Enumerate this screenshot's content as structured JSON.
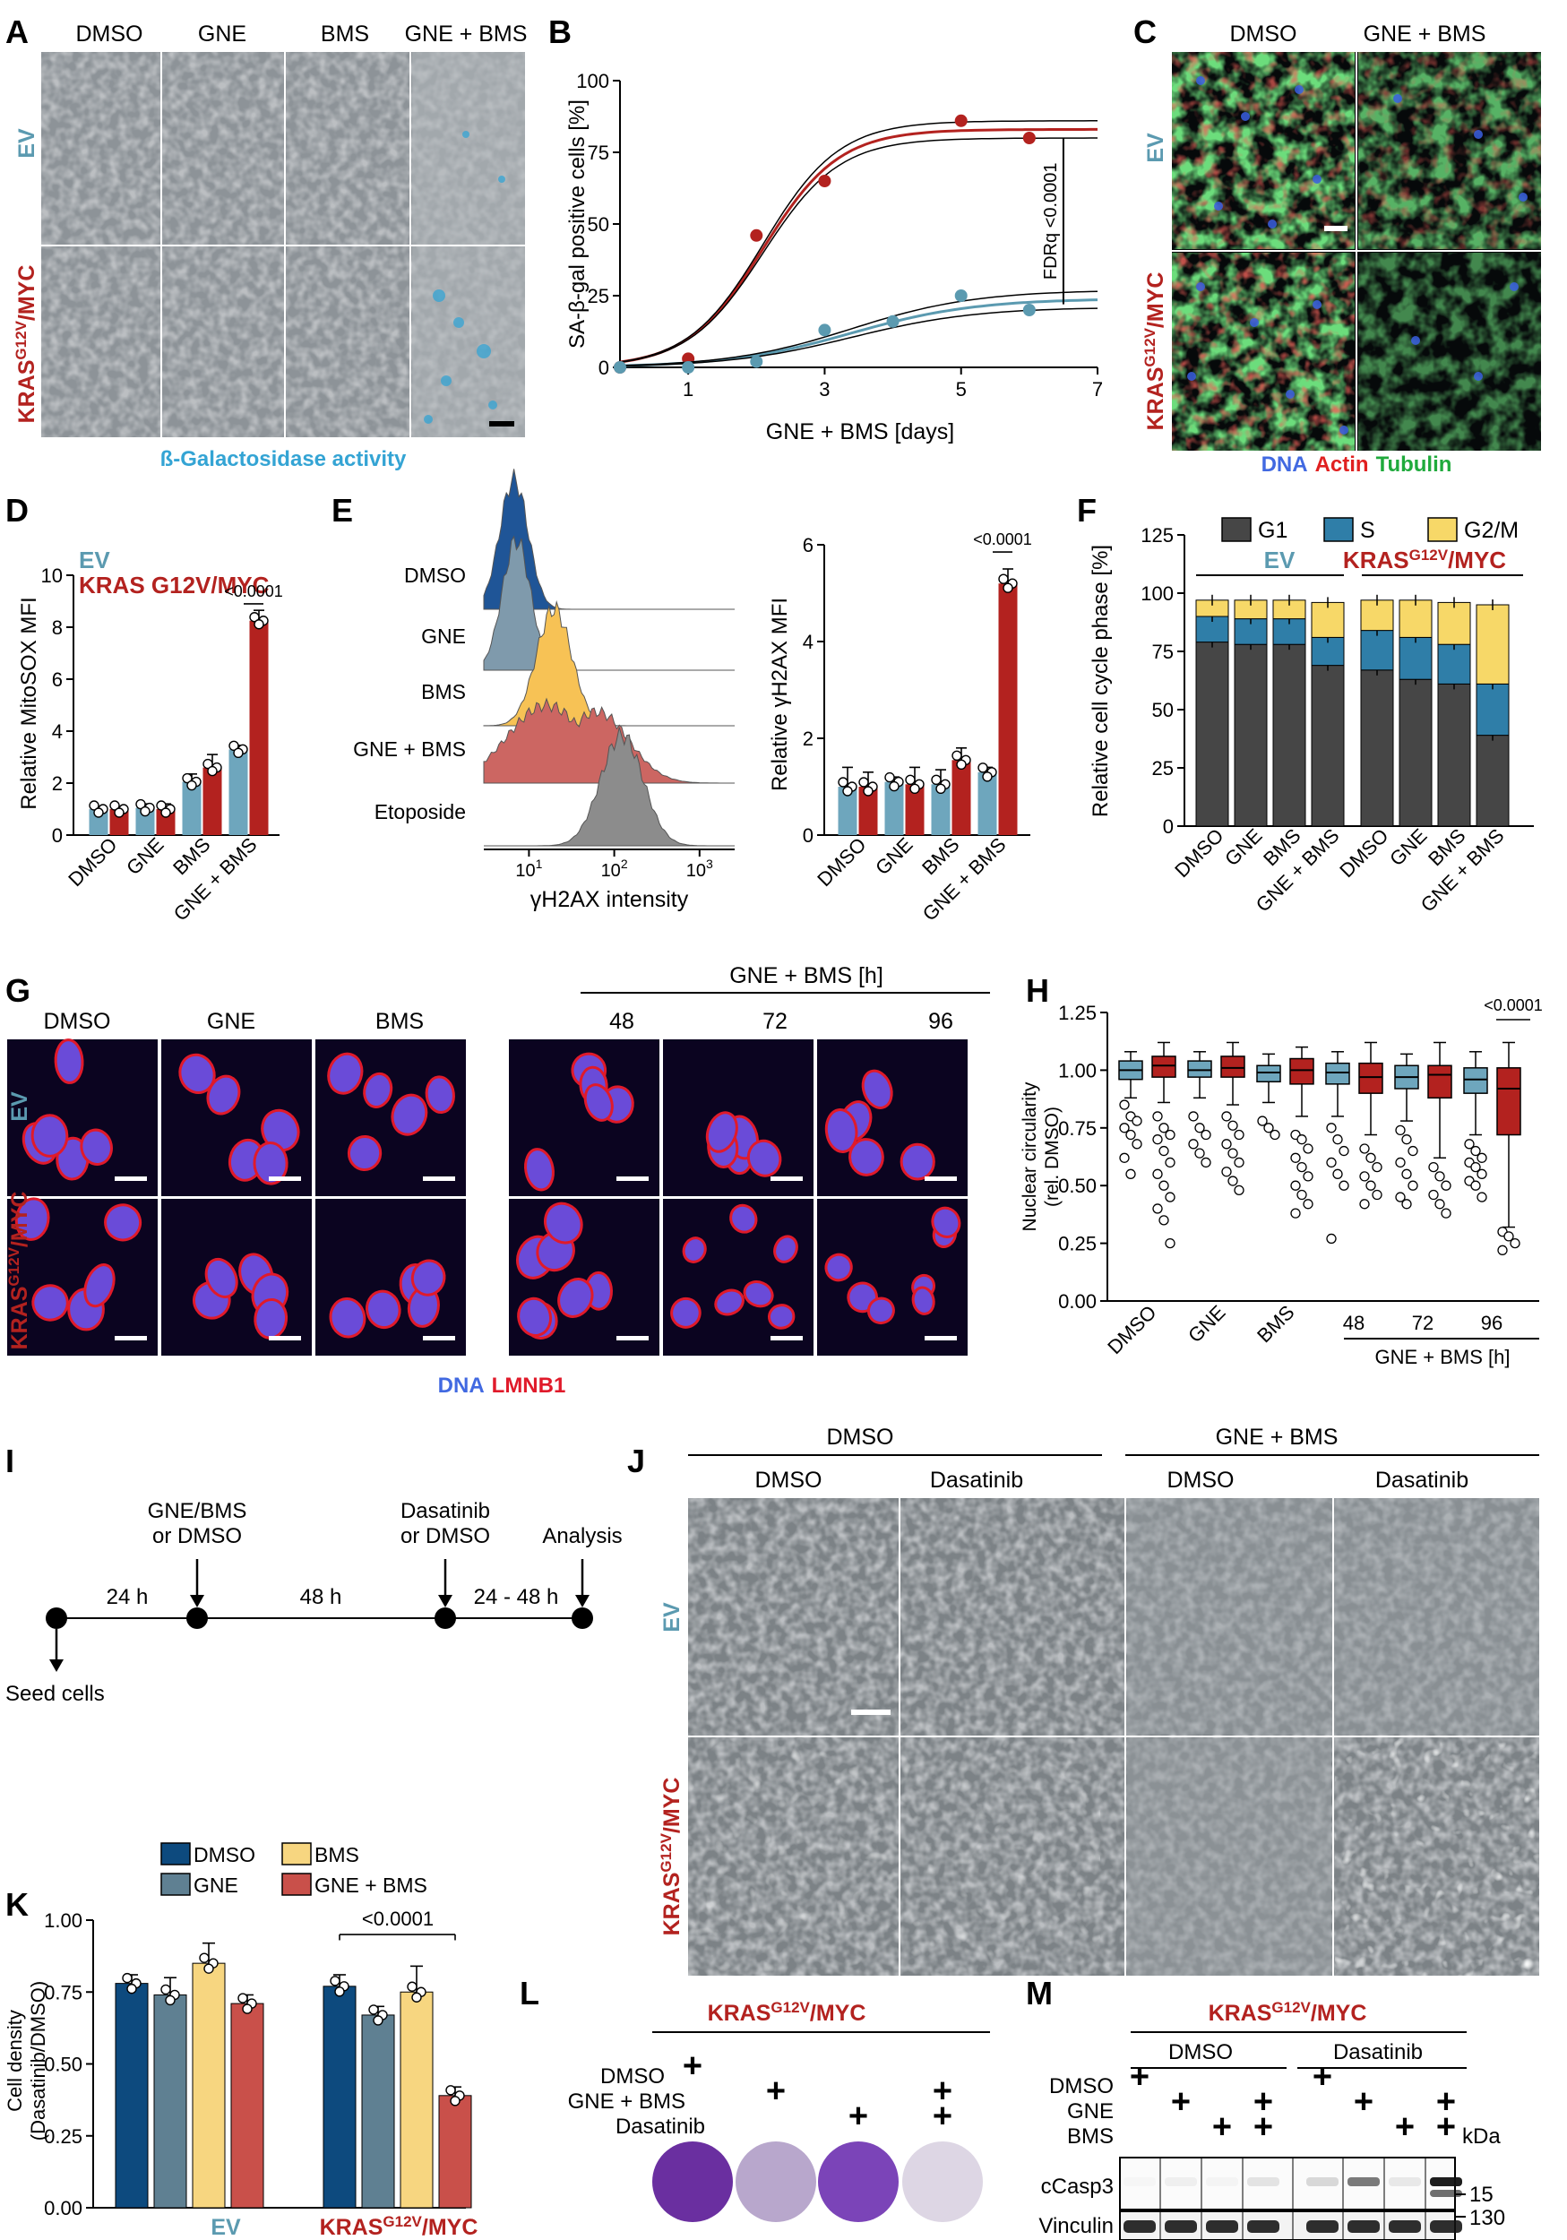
{
  "colors": {
    "ev": "#5b9ab0",
    "kras": "#b3221f",
    "ev_bar": "#6ea6bd",
    "kras_bar": "#b3221f",
    "g1": "#464646",
    "s": "#2f7ea8",
    "g2m": "#f7d868",
    "dmso_k": "#0d4a7e",
    "gne_k": "#5f8092",
    "bms_k": "#f7d680",
    "combo_k": "#c9504a",
    "beta_gal": "#34a4d4",
    "dna": "#4169e1",
    "actin": "#e02020",
    "tubulin": "#1faa3c",
    "lmnb1": "#e01a2a"
  },
  "panels": {
    "A": {
      "letter": "A",
      "columns": [
        "DMSO",
        "GNE",
        "BMS",
        "GNE + BMS"
      ],
      "row_ev": "EV",
      "row_kras_base": "KRAS",
      "row_kras_sup": "G12V",
      "row_kras_tail": "/MYC",
      "caption": "ß-Galactosidase activity"
    },
    "B": {
      "letter": "B"
    },
    "C": {
      "letter": "C",
      "columns": [
        "DMSO",
        "GNE + BMS"
      ],
      "row_ev": "EV",
      "row_kras_base": "KRAS",
      "row_kras_sup": "G12V",
      "row_kras_tail": "/MYC",
      "caption_dna": "DNA",
      "caption_actin": "Actin",
      "caption_tubulin": "Tubulin"
    },
    "D": {
      "letter": "D"
    },
    "E": {
      "letter": "E"
    },
    "F": {
      "letter": "F"
    },
    "G": {
      "letter": "G",
      "columns": [
        "DMSO",
        "GNE",
        "BMS",
        "48",
        "72",
        "96"
      ],
      "header": "GNE + BMS [h]",
      "row_ev": "EV",
      "row_kras_base": "KRAS",
      "row_kras_sup": "G12V",
      "row_kras_tail": "/MYC",
      "caption_dna": "DNA",
      "caption_lmnb1": "LMNB1"
    },
    "H": {
      "letter": "H"
    },
    "I": {
      "letter": "I",
      "step1": "GNE/BMS",
      "step1b": "or DMSO",
      "step2": "Dasatinib",
      "step2b": "or DMSO",
      "step3": "Analysis",
      "seed": "Seed cells",
      "t1": "24 h",
      "t2": "48 h",
      "t3": "24 - 48 h"
    },
    "J": {
      "letter": "J",
      "group1": "DMSO",
      "group2": "GNE + BMS",
      "columns": [
        "DMSO",
        "Dasatinib",
        "DMSO",
        "Dasatinib"
      ],
      "row_ev": "EV",
      "row_kras_base": "KRAS",
      "row_kras_sup": "G12V",
      "row_kras_tail": "/MYC"
    },
    "K": {
      "letter": "K"
    },
    "L": {
      "letter": "L",
      "title_base": "KRAS",
      "title_sup": "G12V",
      "title_tail": "/MYC",
      "rows": [
        "DMSO",
        "GNE + BMS",
        "Dasatinib"
      ],
      "plus": "+"
    },
    "M": {
      "letter": "M",
      "title_base": "KRAS",
      "title_sup": "G12V",
      "title_tail": "/MYC",
      "group1": "DMSO",
      "group2": "Dasatinib",
      "rows": [
        "DMSO",
        "GNE",
        "BMS"
      ],
      "plus": "+",
      "kda": "kDa",
      "blot1": "cCasp3",
      "blot2": "Vinculin",
      "mw1": "15",
      "mw2": "130"
    }
  },
  "chart_data": [
    {
      "id": "B",
      "type": "line",
      "ylabel": "SA-β-gal positive cells [%]",
      "xlabel": "GNE + BMS [days]",
      "ylim": [
        0,
        100
      ],
      "xlim": [
        0,
        7
      ],
      "yticks": [
        0,
        25,
        50,
        75,
        100
      ],
      "xticks": [
        1,
        3,
        5,
        7
      ],
      "annotation": "FDRq <0.0001",
      "series": [
        {
          "name": "",
          "group": "kras",
          "points": [
            [
              0,
              0
            ],
            [
              1,
              3
            ],
            [
              2,
              46
            ],
            [
              3,
              65
            ],
            [
              5,
              86
            ],
            [
              6,
              80
            ]
          ]
        },
        {
          "name": "",
          "group": "ev",
          "points": [
            [
              0,
              0
            ],
            [
              1,
              0
            ],
            [
              2,
              2
            ],
            [
              3,
              13
            ],
            [
              4,
              16
            ],
            [
              5,
              25
            ],
            [
              6,
              20
            ]
          ]
        }
      ]
    },
    {
      "id": "D",
      "type": "bar",
      "ylabel": "Relative MitoSOX MFI",
      "ylim": [
        0,
        10
      ],
      "yticks": [
        0,
        2,
        4,
        6,
        8,
        10
      ],
      "categories": [
        "DMSO",
        "GNE",
        "BMS",
        "GNE + BMS"
      ],
      "legend": [
        "EV",
        "KRAS G12V/MYC"
      ],
      "annotation": "<0.0001",
      "series": [
        {
          "name": "EV",
          "values": [
            1.0,
            1.05,
            2.05,
            3.3
          ],
          "errors": [
            0.1,
            0.15,
            0.3,
            0.15
          ]
        },
        {
          "name": "KRAS G12V/MYC",
          "values": [
            1.0,
            1.0,
            2.6,
            8.25
          ],
          "errors": [
            0.1,
            0.2,
            0.5,
            0.4
          ]
        }
      ]
    },
    {
      "id": "E_hist",
      "type": "area",
      "xlabel": "γH2AX intensity",
      "xticks": [
        "10^1",
        "10^2",
        "10^3"
      ],
      "labels": [
        "DMSO",
        "GNE",
        "BMS",
        "GNE + BMS",
        "Etoposide"
      ],
      "fills": [
        "#1f5597",
        "#7f9aac",
        "#f7c255",
        "#cc6662",
        "#8c8c8c"
      ]
    },
    {
      "id": "E_bar",
      "type": "bar",
      "ylabel": "Relative γH2AX MFI",
      "ylim": [
        0,
        6
      ],
      "yticks": [
        0,
        2,
        4,
        6
      ],
      "categories": [
        "DMSO",
        "GNE",
        "BMS",
        "GNE + BMS"
      ],
      "annotation": "<0.0001",
      "series": [
        {
          "name": "EV",
          "values": [
            1.0,
            1.1,
            1.05,
            1.3
          ],
          "errors": [
            0.4,
            0.1,
            0.3,
            0.1
          ]
        },
        {
          "name": "KRAS G12V/MYC",
          "values": [
            1.0,
            1.05,
            1.55,
            5.2
          ],
          "errors": [
            0.3,
            0.35,
            0.25,
            0.3
          ]
        }
      ]
    },
    {
      "id": "F",
      "type": "bar",
      "ylabel": "Relative cell cycle phase [%]",
      "ylim": [
        0,
        125
      ],
      "yticks": [
        0,
        25,
        50,
        75,
        100,
        125
      ],
      "categories": [
        "DMSO",
        "GNE",
        "BMS",
        "GNE + BMS",
        "DMSO",
        "GNE",
        "BMS",
        "GNE + BMS"
      ],
      "group_labels": [
        "EV",
        "KRAS G12V/MYC"
      ],
      "legend": [
        "G1",
        "S",
        "G2/M"
      ],
      "series": [
        {
          "name": "G1",
          "values": [
            79,
            78,
            78,
            69,
            67,
            63,
            61,
            39
          ]
        },
        {
          "name": "S",
          "values": [
            11,
            11,
            11,
            12,
            17,
            18,
            17,
            22
          ]
        },
        {
          "name": "G2/M",
          "values": [
            7,
            8,
            8,
            15,
            13,
            16,
            18,
            34
          ]
        }
      ]
    },
    {
      "id": "H",
      "type": "box",
      "ylabel": "Nuclear circularity (rel. DMSO)",
      "ylim": [
        0,
        1.25
      ],
      "yticks": [
        0.0,
        0.25,
        0.5,
        0.75,
        1.0,
        1.25
      ],
      "categories": [
        "DMSO",
        "GNE",
        "BMS",
        "48",
        "72",
        "96"
      ],
      "group_label": "GNE + BMS [h]",
      "annotation": "<0.0001",
      "boxes": [
        {
          "group": "ev",
          "q1": 0.96,
          "median": 1.0,
          "q3": 1.04,
          "low": 0.88,
          "high": 1.08,
          "outliers": [
            0.85,
            0.8,
            0.78,
            0.75,
            0.72,
            0.68,
            0.62,
            0.55
          ]
        },
        {
          "group": "kras",
          "q1": 0.97,
          "median": 1.02,
          "q3": 1.06,
          "low": 0.86,
          "high": 1.12,
          "outliers": [
            0.8,
            0.75,
            0.72,
            0.7,
            0.65,
            0.6,
            0.55,
            0.5,
            0.45,
            0.4,
            0.35,
            0.25
          ]
        },
        {
          "group": "ev",
          "q1": 0.97,
          "median": 1.0,
          "q3": 1.04,
          "low": 0.88,
          "high": 1.08,
          "outliers": [
            0.8,
            0.75,
            0.72,
            0.68,
            0.64,
            0.6
          ]
        },
        {
          "group": "kras",
          "q1": 0.97,
          "median": 1.01,
          "q3": 1.06,
          "low": 0.85,
          "high": 1.12,
          "outliers": [
            0.8,
            0.76,
            0.72,
            0.68,
            0.64,
            0.6,
            0.56,
            0.52,
            0.48
          ]
        },
        {
          "group": "ev",
          "q1": 0.95,
          "median": 0.99,
          "q3": 1.02,
          "low": 0.86,
          "high": 1.07,
          "outliers": [
            0.78,
            0.75,
            0.72
          ]
        },
        {
          "group": "kras",
          "q1": 0.94,
          "median": 1.0,
          "q3": 1.05,
          "low": 0.8,
          "high": 1.1,
          "outliers": [
            0.72,
            0.7,
            0.66,
            0.62,
            0.58,
            0.54,
            0.5,
            0.46,
            0.42,
            0.38
          ]
        },
        {
          "group": "ev",
          "q1": 0.94,
          "median": 0.99,
          "q3": 1.03,
          "low": 0.8,
          "high": 1.08,
          "outliers": [
            0.75,
            0.7,
            0.65,
            0.6,
            0.55,
            0.5,
            0.27
          ]
        },
        {
          "group": "kras",
          "q1": 0.9,
          "median": 0.97,
          "q3": 1.03,
          "low": 0.72,
          "high": 1.12,
          "outliers": [
            0.66,
            0.62,
            0.58,
            0.54,
            0.5,
            0.46,
            0.42
          ]
        },
        {
          "group": "ev",
          "q1": 0.92,
          "median": 0.97,
          "q3": 1.02,
          "low": 0.78,
          "high": 1.07,
          "outliers": [
            0.74,
            0.7,
            0.65,
            0.6,
            0.55,
            0.5,
            0.45,
            0.42
          ]
        },
        {
          "group": "kras",
          "q1": 0.88,
          "median": 0.98,
          "q3": 1.02,
          "low": 0.62,
          "high": 1.12,
          "outliers": [
            0.58,
            0.54,
            0.5,
            0.46,
            0.42,
            0.38
          ]
        },
        {
          "group": "ev",
          "q1": 0.9,
          "median": 0.96,
          "q3": 1.01,
          "low": 0.72,
          "high": 1.08,
          "outliers": [
            0.68,
            0.65,
            0.62,
            0.6,
            0.58,
            0.55,
            0.52,
            0.5,
            0.45
          ]
        },
        {
          "group": "kras",
          "q1": 0.72,
          "median": 0.92,
          "q3": 1.01,
          "low": 0.32,
          "high": 1.12,
          "outliers": [
            0.3,
            0.28,
            0.25,
            0.22
          ]
        }
      ]
    },
    {
      "id": "K",
      "type": "bar",
      "ylabel": "Cell density (Dasatinib/DMSO)",
      "ylim": [
        0,
        1.0
      ],
      "yticks": [
        0.0,
        0.25,
        0.5,
        0.75,
        1.0
      ],
      "group_labels": [
        "EV",
        "KRAS G12V/MYC"
      ],
      "legend": [
        "DMSO",
        "GNE",
        "BMS",
        "GNE + BMS"
      ],
      "annotation": "<0.0001",
      "series": [
        {
          "name": "DMSO",
          "values": [
            0.78,
            0.77
          ],
          "errors": [
            0.03,
            0.04
          ]
        },
        {
          "name": "GNE",
          "values": [
            0.74,
            0.67
          ],
          "errors": [
            0.06,
            0.03
          ]
        },
        {
          "name": "BMS",
          "values": [
            0.85,
            0.75
          ],
          "errors": [
            0.07,
            0.09
          ]
        },
        {
          "name": "GNE + BMS",
          "values": [
            0.71,
            0.39
          ],
          "errors": [
            0.03,
            0.03
          ]
        }
      ]
    }
  ]
}
